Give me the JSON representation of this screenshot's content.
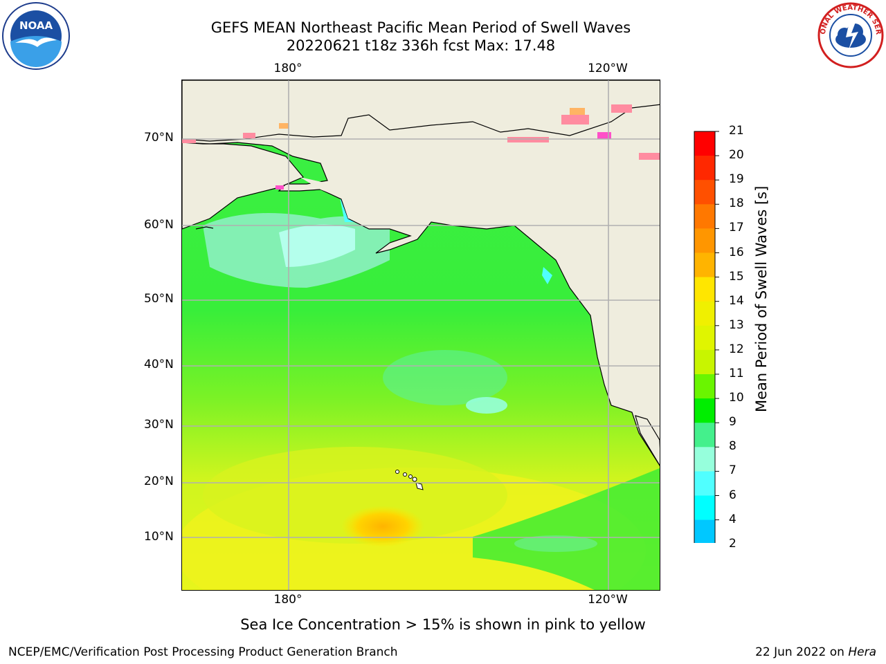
{
  "title": {
    "line1": "GEFS MEAN Northeast Pacific Mean Period of Swell Waves",
    "line2": "20220621 t18z 336h fcst   Max: 17.48"
  },
  "map": {
    "region": "Northeast Pacific",
    "lon_labels_top": [
      "180°",
      "120°W"
    ],
    "lon_labels_bottom": [
      "180°",
      "120°W"
    ],
    "lat_labels": [
      "70°N",
      "60°N",
      "50°N",
      "40°N",
      "30°N",
      "20°N",
      "10°N"
    ],
    "land_color": "#efedde",
    "grid_color": "#b0b0b0"
  },
  "colorbar": {
    "title": "Mean Period of Swell Waves [s]",
    "ticks": [
      "21",
      "20",
      "19",
      "18",
      "17",
      "16",
      "15",
      "14",
      "13",
      "12",
      "11",
      "10",
      "9",
      "8",
      "7",
      "6",
      "4",
      "2"
    ],
    "colors": [
      "#ff0000",
      "#ff2800",
      "#ff5000",
      "#ff7800",
      "#ff9600",
      "#ffb400",
      "#ffe600",
      "#f0f000",
      "#e0f500",
      "#c8f500",
      "#6af500",
      "#00ee00",
      "#44f08c",
      "#96ffdc",
      "#50ffff",
      "#00ffff",
      "#00c8ff",
      "#0064ff"
    ],
    "extend_color": "#0000ff"
  },
  "note": "Sea Ice Concentration > 15% is shown in pink to yellow",
  "footer": {
    "credit": "NCEP/EMC/Verification Post Processing Product Generation Branch",
    "date": "22 Jun 2022 on",
    "machine": "Hera"
  },
  "logos": {
    "noaa": "NOAA",
    "nws": "NATIONAL WEATHER SERVICE"
  }
}
